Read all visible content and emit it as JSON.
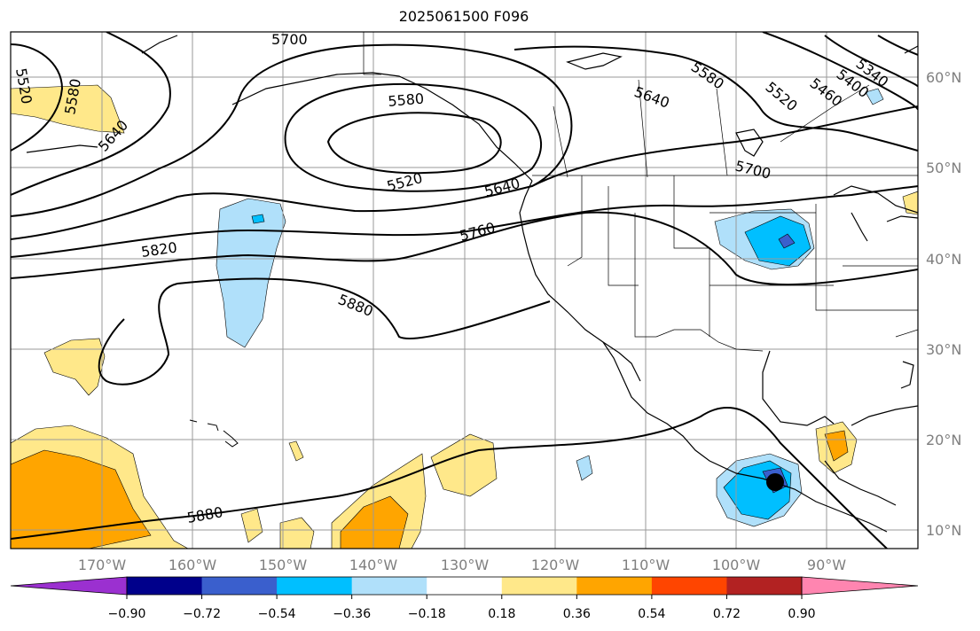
{
  "title": "2025061500 F096",
  "map": {
    "lon_labels": [
      "170°W",
      "160°W",
      "150°W",
      "140°W",
      "130°W",
      "120°W",
      "110°W",
      "100°W",
      "90°W"
    ],
    "lat_labels": [
      "60°N",
      "50°N",
      "40°N",
      "30°N",
      "20°N",
      "10°N"
    ],
    "contour_labels": [
      "5700",
      "5520",
      "5580",
      "5640",
      "5580",
      "5520",
      "5640",
      "5580",
      "5520",
      "5460",
      "5400",
      "5340",
      "5700",
      "5640",
      "5760",
      "5820",
      "5880",
      "5880"
    ],
    "center_marker": "black-dot-icon"
  },
  "colorbar": {
    "ticks": [
      "−0.90",
      "−0.72",
      "−0.54",
      "−0.36",
      "−0.18",
      "0.18",
      "0.36",
      "0.54",
      "0.72",
      "0.90"
    ],
    "colors": [
      "#9b30d0",
      "#00008b",
      "#3a5fcd",
      "#00bfff",
      "#b0e0fa",
      "#ffffff",
      "#ffe88a",
      "#ffa500",
      "#ff4500",
      "#b22222",
      "#ff85b0"
    ]
  }
}
